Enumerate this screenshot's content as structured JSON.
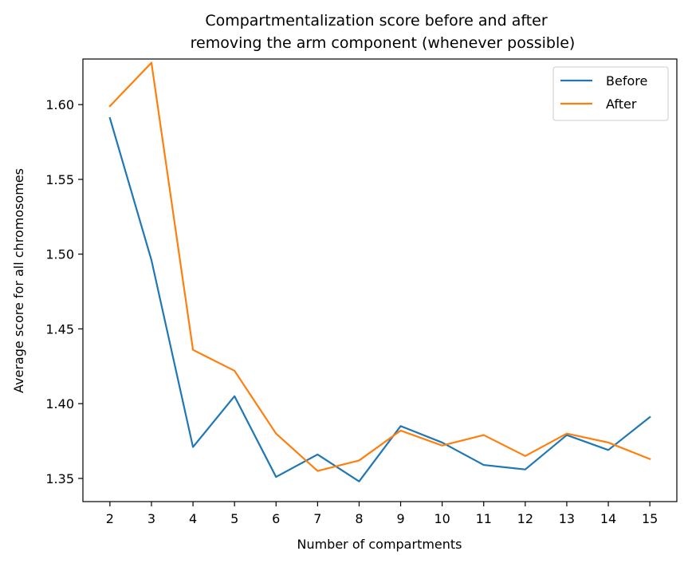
{
  "chart_data": {
    "type": "line",
    "title_line1": "Compartmentalization score before and after",
    "title_line2": "removing the arm component (whenever possible)",
    "xlabel": "Number of compartments",
    "ylabel": "Average score for all chromosomes",
    "x": [
      2,
      3,
      4,
      5,
      6,
      7,
      8,
      9,
      10,
      11,
      12,
      13,
      14,
      15
    ],
    "xlim": [
      1.35,
      15.65
    ],
    "ylim": [
      1.3345,
      1.6305
    ],
    "yticks": [
      1.35,
      1.4,
      1.45,
      1.5,
      1.55,
      1.6
    ],
    "ytick_labels": [
      "1.35",
      "1.40",
      "1.45",
      "1.50",
      "1.55",
      "1.60"
    ],
    "grid": false,
    "legend_position": "top-right",
    "series": [
      {
        "name": "Before",
        "color": "#1f77b4",
        "values": [
          1.591,
          1.496,
          1.371,
          1.405,
          1.351,
          1.366,
          1.348,
          1.385,
          1.374,
          1.359,
          1.356,
          1.379,
          1.369,
          1.391
        ]
      },
      {
        "name": "After",
        "color": "#ff7f0e",
        "values": [
          1.599,
          1.628,
          1.436,
          1.422,
          1.38,
          1.355,
          1.362,
          1.382,
          1.372,
          1.379,
          1.365,
          1.38,
          1.374,
          1.363
        ]
      }
    ]
  }
}
